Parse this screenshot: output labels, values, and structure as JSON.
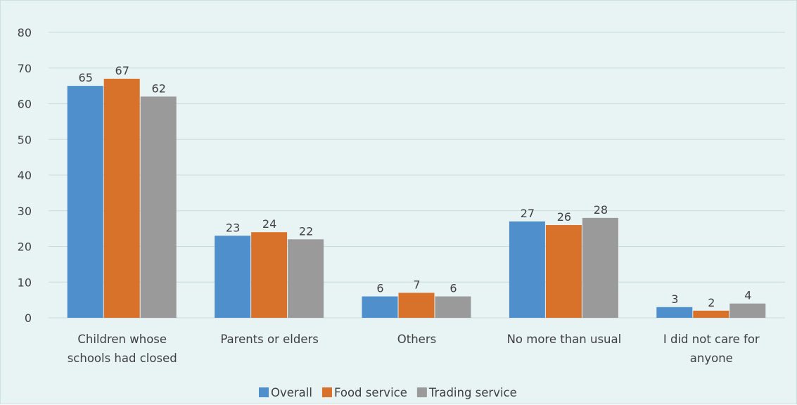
{
  "chart_data": {
    "type": "bar",
    "title": "",
    "xlabel": "",
    "ylabel": "",
    "ylim": [
      0,
      80
    ],
    "yticks": [
      0,
      10,
      20,
      30,
      40,
      50,
      60,
      70,
      80
    ],
    "grid": true,
    "legend_position": "bottom",
    "categories": [
      [
        "Children whose",
        "schools had closed"
      ],
      [
        "Parents or elders"
      ],
      [
        "Others"
      ],
      [
        "No more than usual"
      ],
      [
        "I did not care for",
        "anyone"
      ]
    ],
    "series": [
      {
        "name": "Overall",
        "color": "#4e8fcc",
        "values": [
          65,
          23,
          6,
          27,
          3
        ]
      },
      {
        "name": "Food service",
        "color": "#d8722b",
        "values": [
          67,
          24,
          7,
          26,
          2
        ]
      },
      {
        "name": "Trading service",
        "color": "#9a9a9a",
        "values": [
          62,
          22,
          6,
          28,
          4
        ]
      }
    ]
  },
  "colors": {
    "background": "#e8f3f3",
    "grid": "#c9dcdc",
    "text": "#404040"
  }
}
